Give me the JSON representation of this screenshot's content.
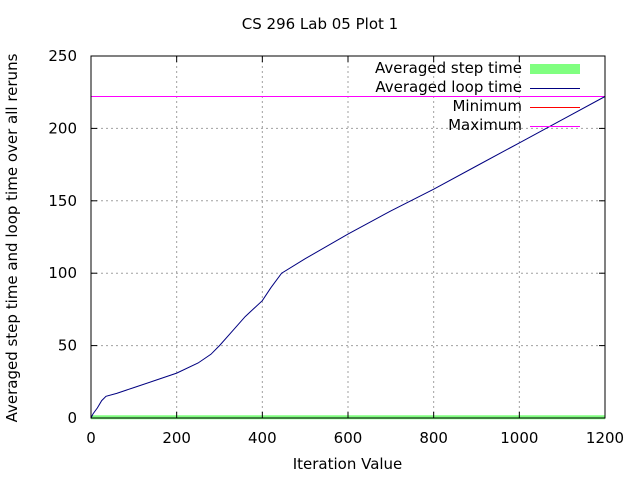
{
  "chart_data": {
    "type": "line",
    "title": "CS 296 Lab 05 Plot 1",
    "xlabel": "Iteration Value",
    "ylabel": "Averaged step time and loop time over all reruns",
    "xlim": [
      0,
      1200
    ],
    "ylim": [
      0,
      250
    ],
    "x_ticks": [
      "0",
      "200",
      "400",
      "600",
      "800",
      "1000",
      "1200"
    ],
    "y_ticks": [
      "0",
      "50",
      "100",
      "150",
      "200",
      "250"
    ],
    "grid": true,
    "legend_position": "top-right",
    "series": [
      {
        "name": "Averaged step time",
        "color": "#80ff80",
        "style": "thick-line",
        "x": [
          0,
          1200
        ],
        "y": [
          0.5,
          0.5
        ]
      },
      {
        "name": "Averaged loop time",
        "color": "#000080",
        "style": "line",
        "x": [
          0,
          5,
          15,
          25,
          35,
          60,
          100,
          150,
          200,
          250,
          280,
          300,
          330,
          360,
          400,
          420,
          445,
          500,
          600,
          700,
          800,
          900,
          1000,
          1100,
          1200
        ],
        "y": [
          0,
          3,
          7,
          12,
          15,
          17,
          21,
          26,
          31,
          38,
          44,
          50,
          60,
          70,
          81,
          90,
          100,
          110,
          127,
          143,
          158,
          174,
          190,
          206,
          222
        ]
      },
      {
        "name": "Minimum",
        "color": "#ff0000",
        "style": "line",
        "x": [
          0,
          1200
        ],
        "y": [
          0,
          0
        ]
      },
      {
        "name": "Maximum",
        "color": "#ff00ff",
        "style": "line",
        "x": [
          0,
          1200
        ],
        "y": [
          222,
          222
        ]
      }
    ]
  }
}
